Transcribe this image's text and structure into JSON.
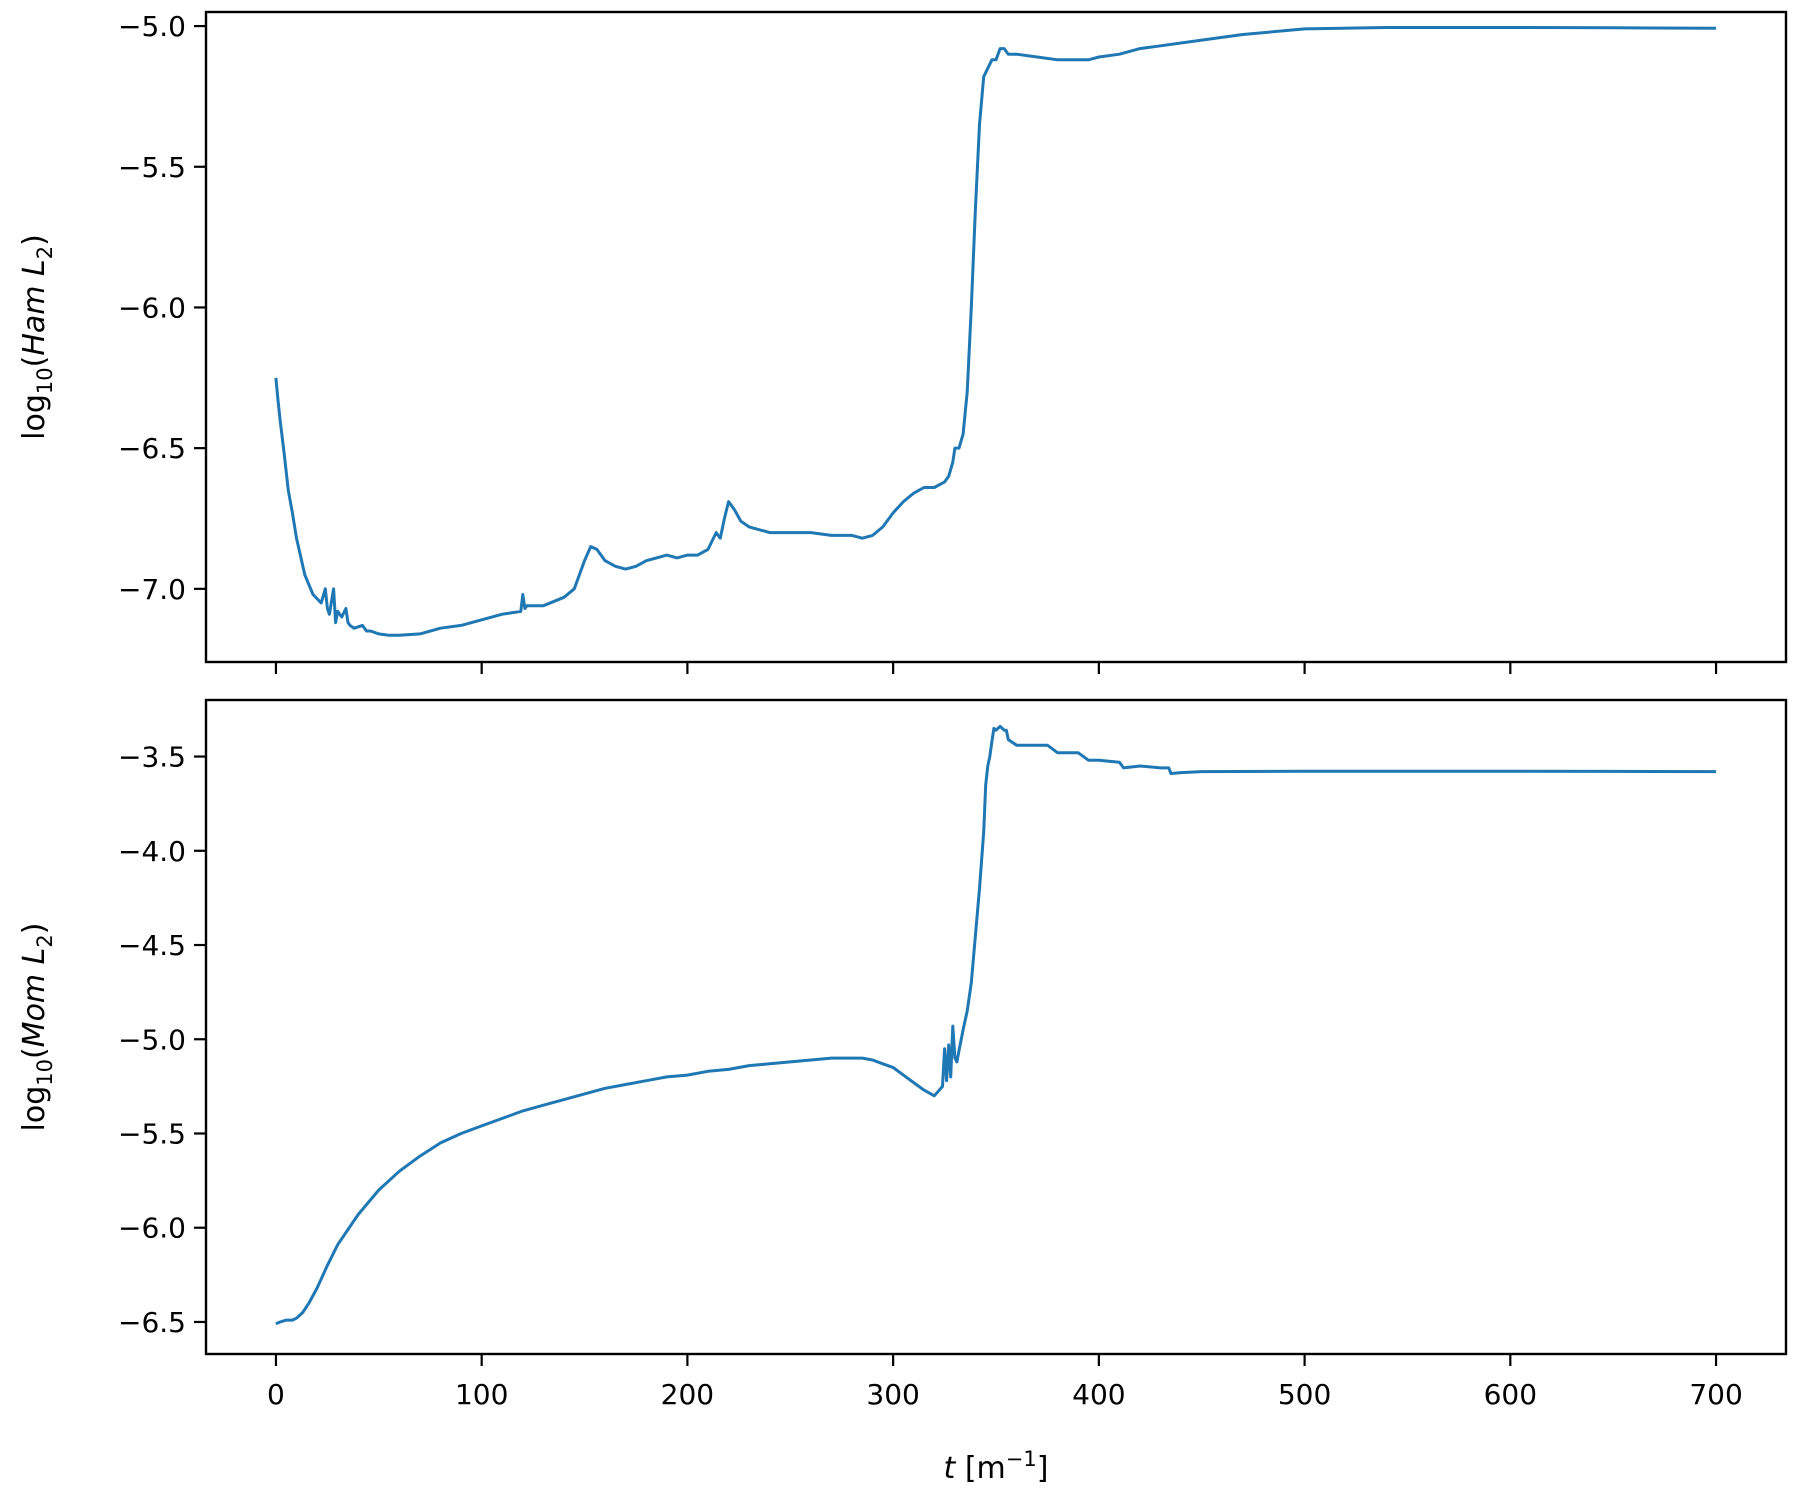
{
  "chart_data": [
    {
      "type": "line",
      "ylabel_text": "log",
      "ylabel_sub": "10",
      "ylabel_var": "Ham L",
      "ylabel_var_sub": "2",
      "xlim": [
        -34,
        734
      ],
      "ylim": [
        -7.26,
        -4.95
      ],
      "xticks": [
        0,
        100,
        200,
        300,
        400,
        500,
        600,
        700
      ],
      "yticks": [
        -7.0,
        -6.5,
        -6.0,
        -5.5,
        -5.0
      ],
      "ytick_labels": [
        "−7.0",
        "−6.5",
        "−6.0",
        "−5.5",
        "−5.0"
      ],
      "show_xtick_labels": false,
      "grid": false,
      "series": [
        {
          "color": "#1f77b4",
          "x": [
            0,
            1,
            2,
            4,
            6,
            8,
            10,
            14,
            18,
            22,
            24,
            25,
            26,
            28,
            29,
            30,
            32,
            34,
            35,
            36,
            38,
            42,
            44,
            46,
            50,
            55,
            60,
            70,
            80,
            90,
            100,
            110,
            119,
            120,
            121,
            122,
            130,
            140,
            145,
            150,
            153,
            156,
            160,
            165,
            170,
            175,
            180,
            185,
            190,
            195,
            200,
            205,
            210,
            214,
            216,
            218,
            220,
            223,
            226,
            230,
            240,
            250,
            260,
            270,
            280,
            285,
            290,
            295,
            300,
            305,
            310,
            315,
            320,
            325,
            327,
            329,
            330,
            332,
            334,
            336,
            338,
            340,
            342,
            344,
            346,
            348,
            350,
            352,
            354,
            356,
            358,
            360,
            370,
            380,
            390,
            395,
            400,
            410,
            420,
            430,
            450,
            470,
            500,
            540,
            600,
            650,
            700
          ],
          "y": [
            -6.25,
            -6.33,
            -6.4,
            -6.52,
            -6.65,
            -6.73,
            -6.82,
            -6.95,
            -7.02,
            -7.05,
            -7.0,
            -7.07,
            -7.09,
            -7.0,
            -7.12,
            -7.08,
            -7.1,
            -7.07,
            -7.12,
            -7.13,
            -7.14,
            -7.13,
            -7.15,
            -7.15,
            -7.16,
            -7.165,
            -7.165,
            -7.16,
            -7.14,
            -7.13,
            -7.11,
            -7.09,
            -7.08,
            -7.02,
            -7.07,
            -7.06,
            -7.06,
            -7.03,
            -7.0,
            -6.9,
            -6.85,
            -6.86,
            -6.9,
            -6.92,
            -6.93,
            -6.92,
            -6.9,
            -6.89,
            -6.88,
            -6.89,
            -6.88,
            -6.88,
            -6.86,
            -6.8,
            -6.82,
            -6.75,
            -6.69,
            -6.72,
            -6.76,
            -6.78,
            -6.8,
            -6.8,
            -6.8,
            -6.81,
            -6.81,
            -6.82,
            -6.81,
            -6.78,
            -6.73,
            -6.69,
            -6.66,
            -6.64,
            -6.64,
            -6.62,
            -6.6,
            -6.55,
            -6.5,
            -6.5,
            -6.45,
            -6.3,
            -6.0,
            -5.65,
            -5.35,
            -5.18,
            -5.15,
            -5.12,
            -5.12,
            -5.08,
            -5.08,
            -5.1,
            -5.1,
            -5.1,
            -5.11,
            -5.12,
            -5.12,
            -5.12,
            -5.11,
            -5.1,
            -5.08,
            -5.07,
            -5.05,
            -5.03,
            -5.01,
            -5.005,
            -5.005,
            -5.006,
            -5.008
          ]
        }
      ]
    },
    {
      "type": "line",
      "ylabel_text": "log",
      "ylabel_sub": "10",
      "ylabel_var": "Mom L",
      "ylabel_var_sub": "2",
      "xlabel_var": "t",
      "xlabel_unit": "[m",
      "xlabel_exp": "−1",
      "xlabel_close": "]",
      "xlim": [
        -34,
        734
      ],
      "ylim": [
        -6.67,
        -3.2
      ],
      "xticks": [
        0,
        100,
        200,
        300,
        400,
        500,
        600,
        700
      ],
      "xtick_labels": [
        "0",
        "100",
        "200",
        "300",
        "400",
        "500",
        "600",
        "700"
      ],
      "yticks": [
        -6.5,
        -6.0,
        -5.5,
        -5.0,
        -4.5,
        -4.0,
        -3.5
      ],
      "ytick_labels": [
        "−6.5",
        "−6.0",
        "−5.5",
        "−5.0",
        "−4.5",
        "−4.0",
        "−3.5"
      ],
      "show_xtick_labels": true,
      "grid": false,
      "series": [
        {
          "color": "#1f77b4",
          "x": [
            0,
            2,
            5,
            8,
            10,
            13,
            16,
            20,
            25,
            30,
            40,
            50,
            60,
            70,
            80,
            90,
            100,
            110,
            120,
            130,
            140,
            150,
            160,
            170,
            180,
            190,
            200,
            210,
            220,
            230,
            240,
            250,
            260,
            270,
            280,
            285,
            290,
            295,
            300,
            305,
            310,
            315,
            320,
            324,
            325,
            326,
            327,
            328,
            329,
            330,
            331,
            332,
            334,
            336,
            338,
            340,
            342,
            344,
            345,
            346,
            347,
            348,
            349,
            350,
            352,
            354,
            355,
            356,
            360,
            370,
            375,
            380,
            390,
            395,
            400,
            410,
            412,
            420,
            430,
            434,
            435,
            440,
            450,
            500,
            550,
            600,
            650,
            700
          ],
          "y": [
            -6.51,
            -6.5,
            -6.49,
            -6.49,
            -6.48,
            -6.45,
            -6.4,
            -6.32,
            -6.2,
            -6.09,
            -5.93,
            -5.8,
            -5.7,
            -5.62,
            -5.55,
            -5.5,
            -5.46,
            -5.42,
            -5.38,
            -5.35,
            -5.32,
            -5.29,
            -5.26,
            -5.24,
            -5.22,
            -5.2,
            -5.19,
            -5.17,
            -5.16,
            -5.14,
            -5.13,
            -5.12,
            -5.11,
            -5.1,
            -5.1,
            -5.1,
            -5.11,
            -5.13,
            -5.15,
            -5.19,
            -5.23,
            -5.27,
            -5.3,
            -5.25,
            -5.05,
            -5.22,
            -5.03,
            -5.2,
            -4.93,
            -5.1,
            -5.12,
            -5.06,
            -4.95,
            -4.85,
            -4.7,
            -4.45,
            -4.2,
            -3.9,
            -3.65,
            -3.55,
            -3.5,
            -3.42,
            -3.35,
            -3.36,
            -3.34,
            -3.36,
            -3.36,
            -3.41,
            -3.44,
            -3.44,
            -3.44,
            -3.48,
            -3.48,
            -3.52,
            -3.52,
            -3.53,
            -3.56,
            -3.55,
            -3.56,
            -3.56,
            -3.59,
            -3.585,
            -3.58,
            -3.578,
            -3.578,
            -3.578,
            -3.579,
            -3.58
          ]
        }
      ]
    }
  ]
}
